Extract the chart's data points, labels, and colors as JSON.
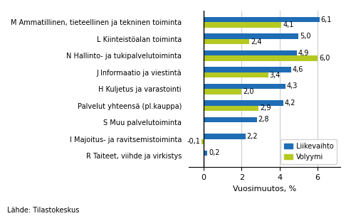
{
  "categories": [
    "R Taiteet, viihde ja virkistys",
    "I Majoitus- ja ravitsemistoiminta",
    "S Muu palvelutoiminta",
    "Palvelut yhteensä (pl.kauppa)",
    "H Kuljetus ja varastointi",
    "J Informaatio ja viestintä",
    "N Hallinto- ja tukipalvelutoiminta",
    "L Kiinteistöalan toiminta",
    "M Ammatillinen, tieteellinen ja tekninen toiminta"
  ],
  "liikevaihto": [
    0.2,
    2.2,
    2.8,
    4.2,
    4.3,
    4.6,
    4.9,
    5.0,
    6.1
  ],
  "liikevaihto_labels": [
    "0,2",
    "2,2",
    "2,8",
    "4,2",
    "4,3",
    "4,6",
    "4,9",
    "5,0",
    "6,1"
  ],
  "volyymi": [
    null,
    -0.1,
    null,
    2.9,
    2.0,
    3.4,
    6.0,
    2.4,
    4.1
  ],
  "volyymi_labels": [
    null,
    "-0,1",
    null,
    "2,9",
    "2,0",
    "3,4",
    "6,0",
    "2,4",
    "4,1"
  ],
  "color_liikevaihto": "#1f6db5",
  "color_volyymi": "#b5c923",
  "xlabel": "Vuosimuutos, %",
  "xlim": [
    -0.8,
    7.2
  ],
  "source": "Lähde: Tilastokeskus",
  "legend_liikevaihto": "Liikevaihto",
  "legend_volyymi": "Volyymi",
  "bar_height": 0.32,
  "grid_color": "#cccccc"
}
